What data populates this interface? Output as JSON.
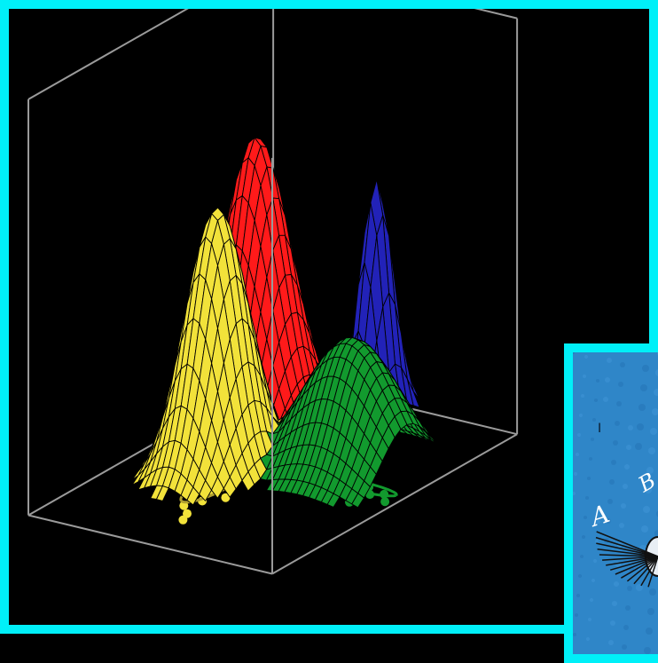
{
  "colors": {
    "frame": "#00f0f8",
    "background": "#000000",
    "axes_box": "#9a9a9a",
    "red": "#ff1a1a",
    "yellow": "#f2e23a",
    "green": "#129a2e",
    "blue": "#2222b8",
    "scatter_blue": "#2a7ad0",
    "inset_bg": "#2f86c8"
  },
  "chart_data": {
    "type": "surface",
    "title": "",
    "xlabel": "",
    "ylabel": "",
    "zlabel": "",
    "grid": false,
    "legend": "none",
    "components": [
      {
        "color_name": "red",
        "mean": [
          -2.5,
          2.5
        ],
        "height": 1.0,
        "sx": 1.15,
        "sy": 1.0,
        "covariance_ellipse": {
          "rx": 2.1,
          "ry": 0.35
        }
      },
      {
        "color_name": "yellow",
        "mean": [
          -1.2,
          -0.7
        ],
        "height": 0.92,
        "sx": 0.95,
        "sy": 1.05,
        "covariance_ellipse": {
          "rx": 0.55,
          "ry": 1.5
        }
      },
      {
        "color_name": "blue",
        "mean": [
          0.5,
          4.6
        ],
        "height": 0.82,
        "sx": 0.45,
        "sy": 0.6,
        "covariance_ellipse": {
          "rx": 0.7,
          "ry": 0.45
        }
      },
      {
        "color_name": "green",
        "mean": [
          2.8,
          1.0
        ],
        "height": 0.48,
        "sx": 1.8,
        "sy": 1.15,
        "covariance_ellipse": {
          "rx": 1.8,
          "ry": 0.3
        }
      }
    ],
    "samples": [
      {
        "color_name": "red",
        "points": [
          [
            -4.4,
            1.9
          ],
          [
            -4.0,
            2.7
          ],
          [
            -3.6,
            2.1
          ],
          [
            -3.2,
            2.9
          ],
          [
            -2.9,
            2.3
          ],
          [
            -2.5,
            2.0
          ],
          [
            -2.2,
            2.8
          ],
          [
            -1.8,
            2.4
          ],
          [
            -1.4,
            2.6
          ],
          [
            -1.0,
            2.2
          ],
          [
            -0.7,
            3.1
          ],
          [
            -3.9,
            3.3
          ],
          [
            -3.1,
            1.7
          ],
          [
            -0.3,
            3.4
          ]
        ]
      },
      {
        "color_name": "yellow",
        "points": [
          [
            -1.9,
            1.1
          ],
          [
            -1.6,
            0.6
          ],
          [
            -1.3,
            1.3
          ],
          [
            -1.0,
            0.7
          ],
          [
            -1.4,
            -0.2
          ],
          [
            -1.1,
            -0.6
          ],
          [
            -0.9,
            -1.2
          ],
          [
            -1.3,
            -1.6
          ],
          [
            -0.7,
            -1.9
          ],
          [
            -1.0,
            -2.4
          ],
          [
            -0.5,
            -2.8
          ],
          [
            -0.2,
            -1.4
          ],
          [
            -1.7,
            -0.9
          ],
          [
            -0.3,
            -3.2
          ],
          [
            -1.5,
            0.2
          ]
        ]
      },
      {
        "color_name": "blue",
        "points": [
          [
            -0.2,
            4.4
          ],
          [
            0.1,
            5.0
          ],
          [
            0.5,
            4.2
          ],
          [
            0.8,
            4.9
          ],
          [
            1.0,
            4.3
          ],
          [
            0.3,
            3.8
          ],
          [
            0.6,
            3.6
          ],
          [
            -0.1,
            3.5
          ],
          [
            1.2,
            4.8
          ],
          [
            -0.8,
            5.6
          ]
        ]
      },
      {
        "color_name": "green",
        "points": [
          [
            0.4,
            2.3
          ],
          [
            0.9,
            1.8
          ],
          [
            1.4,
            2.0
          ],
          [
            1.8,
            1.4
          ],
          [
            2.2,
            1.6
          ],
          [
            2.6,
            1.2
          ],
          [
            3.0,
            0.9
          ],
          [
            3.4,
            1.1
          ],
          [
            3.8,
            0.7
          ],
          [
            4.2,
            0.9
          ],
          [
            4.6,
            0.5
          ],
          [
            1.0,
            1.2
          ],
          [
            2.5,
            0.3
          ],
          [
            3.6,
            0.0
          ],
          [
            1.6,
            0.6
          ]
        ]
      }
    ]
  },
  "inset": {
    "partial_text": "I",
    "partial_letters": [
      "A",
      "B"
    ],
    "icon": "antenna-figure-icon"
  }
}
